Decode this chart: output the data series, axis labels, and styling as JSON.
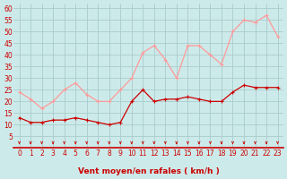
{
  "x": [
    0,
    1,
    2,
    3,
    4,
    5,
    6,
    7,
    8,
    9,
    10,
    11,
    12,
    13,
    14,
    15,
    16,
    17,
    18,
    19,
    20,
    21,
    22,
    23
  ],
  "vent_moyen": [
    13,
    11,
    11,
    12,
    12,
    13,
    12,
    11,
    10,
    11,
    20,
    25,
    20,
    21,
    21,
    22,
    21,
    20,
    20,
    24,
    27,
    26,
    26,
    26
  ],
  "vent_rafales": [
    24,
    21,
    17,
    20,
    25,
    28,
    23,
    20,
    20,
    25,
    30,
    41,
    44,
    38,
    30,
    44,
    44,
    40,
    36,
    50,
    55,
    54,
    57,
    48
  ],
  "bg_color": "#cdeaea",
  "grid_color": "#aacccc",
  "line_color_moyen": "#cc0000",
  "line_color_rafales": "#ff9999",
  "xlabel": "Vent moyen/en rafales ( km/h )",
  "ylim": [
    0,
    62
  ],
  "yticks": [
    5,
    10,
    15,
    20,
    25,
    30,
    35,
    40,
    45,
    50,
    55,
    60
  ],
  "xticks": [
    0,
    1,
    2,
    3,
    4,
    5,
    6,
    7,
    8,
    9,
    10,
    11,
    12,
    13,
    14,
    15,
    16,
    17,
    18,
    19,
    20,
    21,
    22,
    23
  ],
  "xlabel_color": "#cc0000",
  "xlabel_fontsize": 6.5,
  "tick_fontsize": 5.5,
  "marker_size": 3,
  "arrow_color": "#cc0000"
}
